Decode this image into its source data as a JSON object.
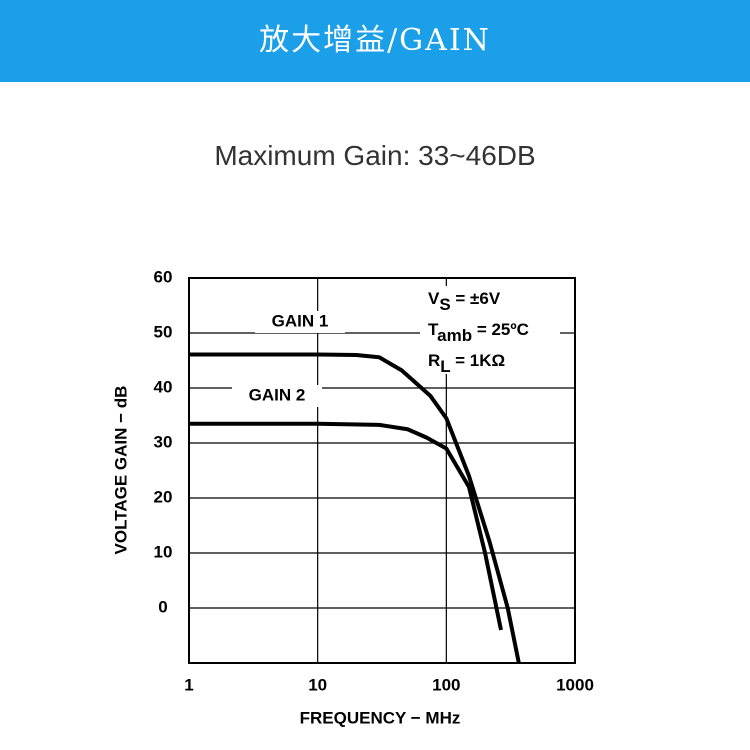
{
  "header": {
    "title": "放大增益/GAIN"
  },
  "subtitle": "Maximum Gain: 33~46DB",
  "chart_data": {
    "type": "line",
    "x_label": "FREQUENCY − MHz",
    "y_label": "VOLTAGE GAIN − dB",
    "xlim": [
      1,
      1000
    ],
    "xticks": [
      1,
      10,
      100,
      1000
    ],
    "xscale": "log",
    "ylim": [
      -10,
      60
    ],
    "yticks": [
      0,
      10,
      20,
      30,
      40,
      50,
      60
    ],
    "grid": true,
    "series": [
      {
        "name": "GAIN 1",
        "color": "#000000",
        "x": [
          1,
          10,
          20,
          30,
          45,
          75,
          100,
          150,
          217,
          300,
          366
        ],
        "values": [
          46.1,
          46.1,
          46,
          45.6,
          43.2,
          38.6,
          34.5,
          24,
          12,
          0,
          -10
        ]
      },
      {
        "name": "GAIN 2",
        "color": "#000000",
        "x": [
          1,
          10,
          30,
          50,
          70,
          100,
          150,
          200,
          266
        ],
        "values": [
          33.5,
          33.5,
          33.3,
          32.5,
          31,
          29,
          22,
          10,
          -4
        ]
      }
    ],
    "annotations": [
      {
        "main": "V",
        "sub": "S",
        "rest": " = ±6V"
      },
      {
        "main": "T",
        "sub": "amb",
        "rest": " = 25ºC"
      },
      {
        "main": "R",
        "sub": "L",
        "rest": " = 1KΩ"
      }
    ]
  }
}
